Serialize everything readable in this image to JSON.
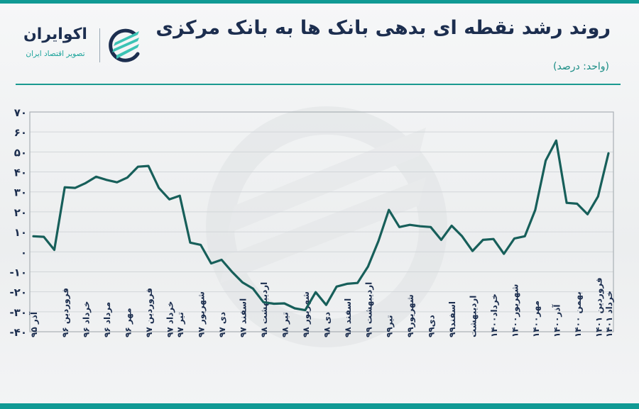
{
  "header": {
    "title": "روند رشد نقطه ای بدهی بانک ها به بانک مرکزی",
    "unit": "(واحد: درصد)"
  },
  "logo": {
    "name": "اکوایران",
    "subtitle": "تصویر اقتصاد ایران",
    "icon": "ecoiran-logo-icon"
  },
  "colors": {
    "accent": "#109a94",
    "line": "#175f5a",
    "title": "#1c2e4f",
    "grid": "#d2d6d9"
  },
  "chart_data": {
    "type": "line",
    "title": "روند رشد نقطه ای بدهی بانک ها به بانک مرکزی",
    "subtitle": "(واحد: درصد)",
    "xlabel": "",
    "ylabel": "",
    "ylim": [
      -40,
      70
    ],
    "yticks": [
      70,
      60,
      50,
      40,
      30,
      20,
      10,
      0,
      -10,
      -20,
      -30,
      -40
    ],
    "ytick_labels": [
      "۷۰",
      "۶۰",
      "۵۰",
      "۴۰",
      "۳۰",
      "۲۰",
      "۱۰",
      "۰",
      "-۱۰",
      "-۲۰",
      "-۳۰",
      "-۴۰"
    ],
    "grid": true,
    "legend": null,
    "x_tick_labels": [
      "آذر ۹۵",
      "فروردین ۹۶",
      "خرداد ۹۶",
      "مرداد ۹۶",
      "مهر ۹۶",
      "فروردین ۹۷",
      "خرداد ۹۷",
      "تیر ۹۷",
      "شهریور ۹۷",
      "دی ۹۷",
      "اسفند ۹۷",
      "اردیبهشت ۹۸",
      "تیر ۹۸",
      "شهریور ۹۸",
      "دی ۹۸",
      "اسفند ۹۸",
      "اردیبهشت ۹۹",
      "تیر۹۹",
      "شهریور۹۹",
      "دی۹۹",
      "اسفند۹۹",
      "اردیبهشت",
      "خرداد۱۴۰۰",
      "شهریور۱۴۰۰",
      "مهر۱۴۰۰",
      "آذر۱۴۰۰",
      "بهمن ۱۴۰۰",
      "فروردین ۱۴۰۱",
      "خرداد ۱۴۰۱"
    ],
    "x_tick_index": [
      0,
      3,
      5,
      7,
      9,
      11,
      13,
      14,
      16,
      18,
      20,
      22,
      24,
      26,
      28,
      30,
      32,
      34,
      36,
      38,
      40,
      42,
      44,
      46,
      48,
      50,
      52,
      54,
      55
    ],
    "series": [
      {
        "name": "رشد نقطه ای بدهی بانک ها به بانک مرکزی",
        "values": [
          7.8,
          7.5,
          1,
          32.3,
          32,
          34.4,
          37.6,
          36,
          34.8,
          37.2,
          42.6,
          43,
          32,
          26.3,
          28.1,
          4.6,
          3.5,
          -5.8,
          -4,
          -10,
          -15.3,
          -18.4,
          -25.2,
          -26,
          -25.8,
          -28.3,
          -29.2,
          -20.2,
          -26.6,
          -17.4,
          -16,
          -15.6,
          -7.4,
          5.4,
          21,
          12.4,
          13.5,
          12.8,
          12.4,
          6,
          13.1,
          7.8,
          0.4,
          6,
          6.4,
          -1,
          6.7,
          7.8,
          21,
          45.7,
          55.7,
          24.5,
          24.1,
          18.8,
          27.7,
          49.3
        ]
      }
    ]
  }
}
